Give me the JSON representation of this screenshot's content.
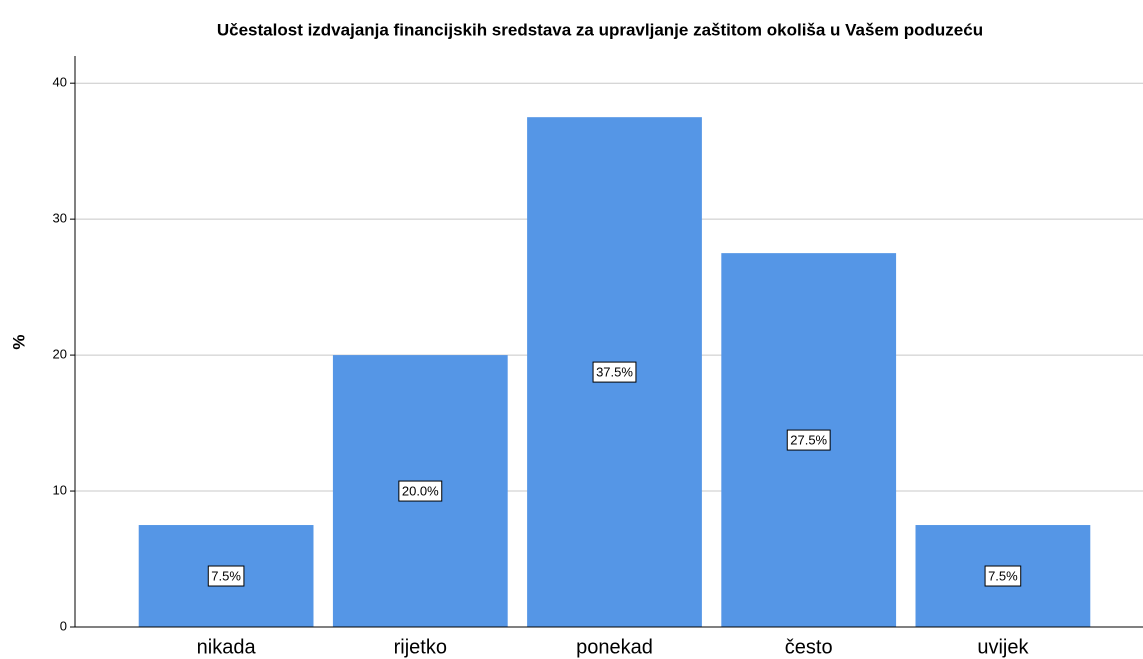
{
  "chart_data": {
    "type": "bar",
    "title": "Učestalost izdvajanja financijskih sredstava za upravljanje zaštitom okoliša u Vašem poduzeću",
    "ylabel": "%",
    "categories": [
      "nikada",
      "rijetko",
      "ponekad",
      "često",
      "uvijek"
    ],
    "values": [
      7.5,
      20.0,
      37.5,
      27.5,
      7.5
    ],
    "value_labels": [
      "7.5%",
      "20.0%",
      "37.5%",
      "27.5%",
      "7.5%"
    ],
    "color": "#5596e6",
    "ylim": [
      0,
      42
    ],
    "yticks": [
      0,
      10,
      20,
      30,
      40
    ],
    "grid": true
  }
}
